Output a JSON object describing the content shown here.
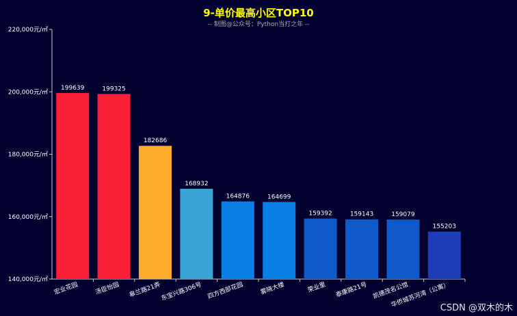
{
  "chart_data": {
    "type": "bar",
    "title": "9-单价最高小区TOP10",
    "subtitle": "-- 制图@公众号：Python当打之年 --",
    "xlabel": "",
    "ylabel": "",
    "ylim": [
      140000,
      220000
    ],
    "y_ticks": [
      "140,000元/㎡",
      "160,000元/㎡",
      "180,000元/㎡",
      "200,000元/㎡",
      "220,000元/㎡"
    ],
    "y_tick_values": [
      140000,
      160000,
      180000,
      200000,
      220000
    ],
    "categories": [
      "宏业花园",
      "汤臣怡园",
      "皋兰路21弄",
      "东宝兴路306号",
      "四方西部花园",
      "雾晓大楼",
      "荣业里",
      "泰康路21号",
      "凯德茂名公馆",
      "华侨城苏河湾（公寓）"
    ],
    "values": [
      199639,
      199325,
      182686,
      168932,
      164876,
      164699,
      159392,
      159143,
      159079,
      155203
    ],
    "colors": [
      "#f81f36",
      "#f81f36",
      "#fdad2b",
      "#3ba4d4",
      "#0a80e6",
      "#0a80e6",
      "#1059c9",
      "#1059c9",
      "#1059c9",
      "#1e3cb6"
    ],
    "title_color": "#ffff00",
    "grid": false
  },
  "watermark": "CSDN @双木的木"
}
